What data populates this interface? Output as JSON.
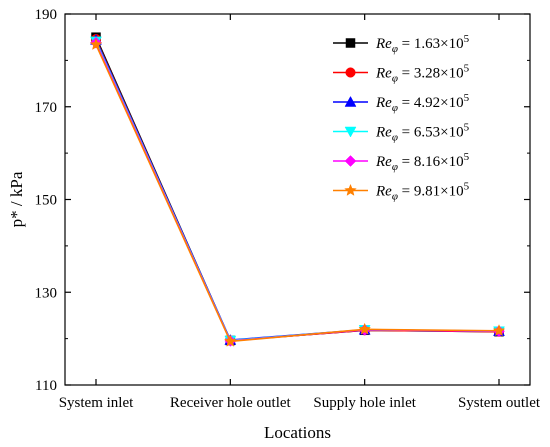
{
  "chart_data": {
    "type": "line",
    "title": "",
    "xlabel": "Locations",
    "ylabel": "p* / kPa",
    "categories": [
      "System inlet",
      "Receiver hole outlet",
      "Supply hole inlet",
      "System outlet"
    ],
    "ylim": [
      110,
      190
    ],
    "yticks": [
      110,
      130,
      150,
      170,
      190
    ],
    "grid": false,
    "legend_position": "top-right",
    "series": [
      {
        "name_prefix": "Re",
        "name_sub": "φ",
        "name_value": " = 1.63×10",
        "name_exp": "5",
        "color": "#000000",
        "marker": "square",
        "values": [
          185.0,
          119.6,
          121.8,
          121.5
        ]
      },
      {
        "name_prefix": "Re",
        "name_sub": "φ",
        "name_value": " = 3.28×10",
        "name_exp": "5",
        "color": "#ff0000",
        "marker": "circle",
        "values": [
          184.6,
          119.6,
          121.8,
          121.5
        ]
      },
      {
        "name_prefix": "Re",
        "name_sub": "φ",
        "name_value": " = 4.92×10",
        "name_exp": "5",
        "color": "#0000ff",
        "marker": "triangle-up",
        "values": [
          184.4,
          119.7,
          121.9,
          121.6
        ]
      },
      {
        "name_prefix": "Re",
        "name_sub": "φ",
        "name_value": " = 6.53×10",
        "name_exp": "5",
        "color": "#00ffff",
        "marker": "triangle-down",
        "values": [
          184.1,
          119.6,
          121.9,
          121.6
        ]
      },
      {
        "name_prefix": "Re",
        "name_sub": "φ",
        "name_value": " = 8.16×10",
        "name_exp": "5",
        "color": "#ff00ff",
        "marker": "diamond",
        "values": [
          183.8,
          119.5,
          121.9,
          121.6
        ]
      },
      {
        "name_prefix": "Re",
        "name_sub": "φ",
        "name_value": " = 9.81×10",
        "name_exp": "5",
        "color": "#ff8000",
        "marker": "star",
        "values": [
          183.4,
          119.4,
          122.0,
          121.7
        ]
      }
    ]
  }
}
